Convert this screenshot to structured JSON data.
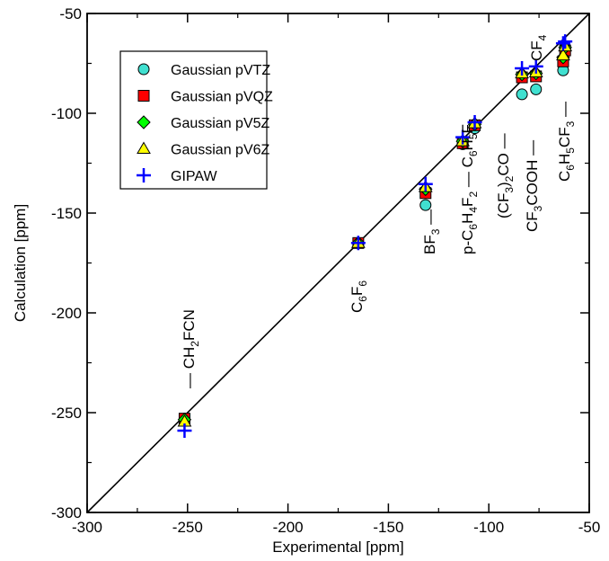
{
  "chart_data": {
    "type": "scatter",
    "xlabel": "Experimental [ppm]",
    "ylabel": "Calculation [ppm]",
    "xlim": [
      -300,
      -50
    ],
    "ylim": [
      -300,
      -50
    ],
    "xticks": [
      -300,
      -250,
      -200,
      -150,
      -100,
      -50
    ],
    "yticks": [
      -300,
      -250,
      -200,
      -150,
      -100,
      -50
    ],
    "grid": false,
    "legend_position": "top-left",
    "reference_line": "y = x",
    "series": [
      {
        "name": "Gaussian pVTZ",
        "marker": "circle",
        "color": "#40e0d0",
        "points": [
          [
            -251.5,
            -253
          ],
          [
            -165,
            -165
          ],
          [
            -131.5,
            -146
          ],
          [
            -113,
            -115.5
          ],
          [
            -107,
            -107.5
          ],
          [
            -83.5,
            -90.5
          ],
          [
            -76.5,
            -88
          ],
          [
            -63,
            -78.5
          ],
          [
            -62,
            -68
          ]
        ]
      },
      {
        "name": "Gaussian pVQZ",
        "marker": "square",
        "color": "#ff0000",
        "points": [
          [
            -251.5,
            -253
          ],
          [
            -165,
            -165
          ],
          [
            -131.5,
            -140
          ],
          [
            -113,
            -115
          ],
          [
            -107,
            -106
          ],
          [
            -83.5,
            -82
          ],
          [
            -76.5,
            -81.5
          ],
          [
            -63,
            -74
          ],
          [
            -62,
            -68.5
          ]
        ]
      },
      {
        "name": "Gaussian pV5Z",
        "marker": "diamond",
        "color": "#00ff00",
        "points": [
          [
            -251.5,
            -253.5
          ],
          [
            -165,
            -165
          ],
          [
            -131.5,
            -138
          ],
          [
            -113,
            -114
          ],
          [
            -107,
            -105.5
          ],
          [
            -83.5,
            -80.5
          ],
          [
            -76.5,
            -80
          ],
          [
            -63,
            -72
          ],
          [
            -62,
            -67
          ]
        ]
      },
      {
        "name": "Gaussian pV6Z",
        "marker": "triangle",
        "color": "#ffff00",
        "points": [
          [
            -251.5,
            -254.5
          ],
          [
            -165,
            -165
          ],
          [
            -131.5,
            -137
          ],
          [
            -113,
            -114
          ],
          [
            -107,
            -105
          ],
          [
            -83.5,
            -80
          ],
          [
            -76.5,
            -79.5
          ],
          [
            -63,
            -71
          ],
          [
            -62,
            -66.5
          ]
        ]
      },
      {
        "name": "GIPAW",
        "marker": "plus",
        "color": "#0000ff",
        "points": [
          [
            -251.5,
            -259
          ],
          [
            -165,
            -165
          ],
          [
            -131.5,
            -135.5
          ],
          [
            -113,
            -112
          ],
          [
            -107,
            -104.5
          ],
          [
            -83.5,
            -77.5
          ],
          [
            -76.5,
            -76.5
          ],
          [
            -63,
            -65
          ],
          [
            -62,
            -64
          ]
        ]
      }
    ]
  },
  "annotations": {
    "ch2fcn": "CH2FCN",
    "c6f6": "C6F6",
    "bf3": "BF3",
    "pc6h4f2": "p-C6H4F2",
    "c6h5f": "C6H5F",
    "cf32co": "(CF3)2CO",
    "cf3cooh": "CF3COOH",
    "c6h5cf3": "C6H5CF3",
    "cf4": "CF4"
  }
}
